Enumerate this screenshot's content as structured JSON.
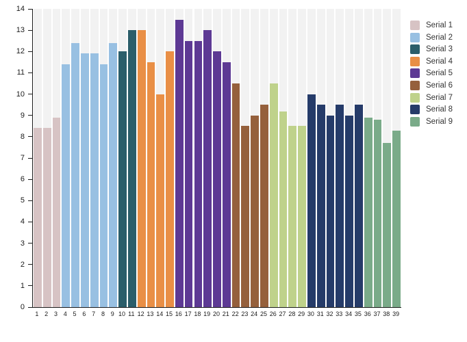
{
  "chart_data": {
    "type": "bar",
    "title": "",
    "xlabel": "",
    "ylabel": "",
    "ylim": [
      0,
      14
    ],
    "grid": false,
    "legend_position": "right",
    "background_stripe_color": "#f2f2f2",
    "axis_color": "#1a1a1a",
    "y_tick_labels": [
      "0",
      "1",
      "2",
      "3",
      "4",
      "5",
      "6",
      "7",
      "8",
      "9",
      "10",
      "11",
      "12",
      "13",
      "14"
    ],
    "x_labels": [
      "1",
      "2",
      "3",
      "4",
      "5",
      "6",
      "7",
      "8",
      "9",
      "10",
      "11",
      "12",
      "13",
      "14",
      "15",
      "16",
      "17",
      "18",
      "19",
      "20",
      "21",
      "22",
      "23",
      "24",
      "25",
      "26",
      "27",
      "28",
      "29",
      "30",
      "31",
      "32",
      "33",
      "34",
      "35",
      "36",
      "37",
      "38",
      "39"
    ],
    "series": [
      {
        "name": "Serial 1",
        "color": "#d7c3c4",
        "values": [
          8.4,
          8.4,
          8.9
        ]
      },
      {
        "name": "Serial 2",
        "color": "#98c0e2",
        "values": [
          11.4,
          12.4,
          11.9,
          11.9,
          11.4,
          12.4
        ]
      },
      {
        "name": "Serial 3",
        "color": "#2b5e6a",
        "values": [
          12.0,
          13.0
        ]
      },
      {
        "name": "Serial 4",
        "color": "#e98f46",
        "values": [
          13.0,
          11.5,
          10.0,
          12.0
        ]
      },
      {
        "name": "Serial 5",
        "color": "#5d3994",
        "values": [
          13.5,
          12.5,
          12.5,
          13.0,
          12.0,
          11.5
        ]
      },
      {
        "name": "Serial 6",
        "color": "#95603c",
        "values": [
          10.5,
          8.5,
          9.0,
          9.5
        ]
      },
      {
        "name": "Serial 7",
        "color": "#bfd28b",
        "values": [
          10.5,
          9.2,
          8.5,
          8.5
        ]
      },
      {
        "name": "Serial 8",
        "color": "#253b69",
        "values": [
          10.0,
          9.5,
          9.0,
          9.5,
          9.0,
          9.5
        ]
      },
      {
        "name": "Serial 9",
        "color": "#7aab89",
        "values": [
          8.9,
          8.8,
          7.7,
          8.3
        ]
      }
    ]
  }
}
